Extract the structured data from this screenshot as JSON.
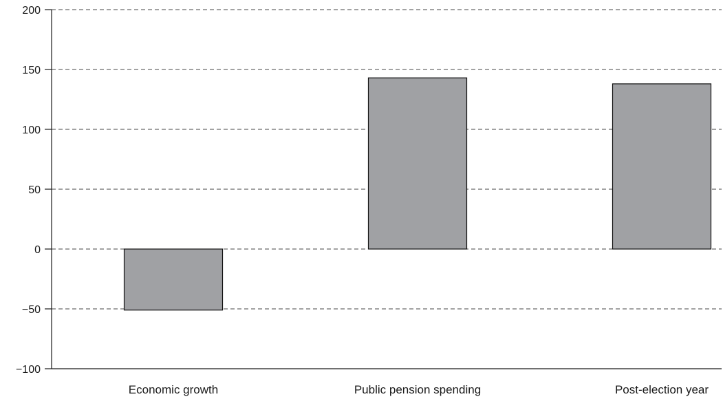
{
  "chart_data": {
    "type": "bar",
    "categories": [
      "Economic growth",
      "Public pension spending",
      "Post-election year"
    ],
    "values": [
      -51,
      143,
      138
    ],
    "title": "",
    "xlabel": "",
    "ylabel": "",
    "ylim": [
      -100,
      200
    ],
    "yticks": [
      -100,
      -50,
      0,
      50,
      100,
      150,
      200
    ],
    "ytick_labels": [
      "−100",
      "−50",
      "0",
      "50",
      "100",
      "150",
      "200"
    ],
    "grid": true,
    "legend": "none",
    "bar_color": "#a0a1a4"
  }
}
